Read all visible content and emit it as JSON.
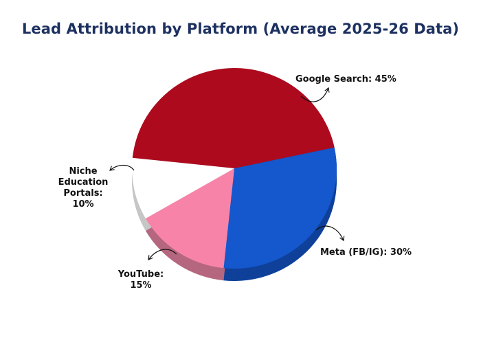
{
  "chart_data": {
    "type": "pie",
    "title": "Lead Attribution by Platform (Average 2025-26 Data)",
    "categories": [
      "Google Search",
      "Meta (FB/IG)",
      "YouTube",
      "Niche Education Portals"
    ],
    "values": [
      45,
      30,
      15,
      10
    ],
    "unit": "%",
    "labels": [
      "Google Search: 45%",
      "Meta (FB/IG): 30%",
      "YouTube: 15%",
      "Niche Education Portals: 10%"
    ],
    "colors": [
      "#ad0a1e",
      "#1557cc",
      "#f784a8",
      "#ffffff"
    ],
    "side_colors": [
      "#7a0715",
      "#0f409a",
      "#b5677f",
      "#c6c6c6"
    ]
  }
}
